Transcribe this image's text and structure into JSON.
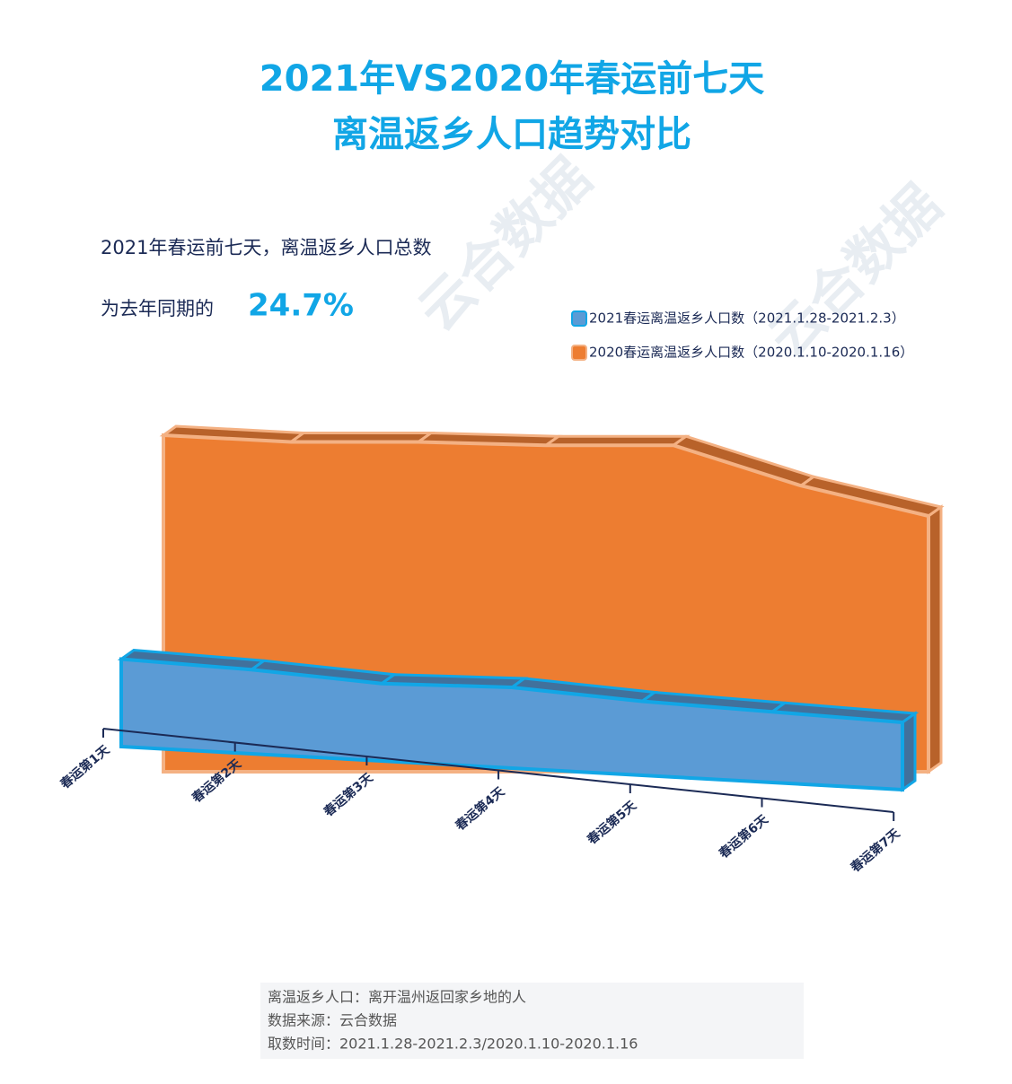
{
  "watermark": "云合数据",
  "chart_data": {
    "type": "area3d",
    "title": [
      "2021年VS2020年春运前七天",
      "离温返乡人口趋势对比"
    ],
    "subtitle": [
      "2021年春运前七天，离温返乡人口总数",
      "为去年同期的"
    ],
    "highlight": "24.7%",
    "categories": [
      "春运第1天",
      "春运第2天",
      "春运第3天",
      "春运第4天",
      "春运第5天",
      "春运第6天",
      "春运第7天"
    ],
    "series": [
      {
        "name": "2021春运离温返乡人口数（2021.1.28-2021.2.3）",
        "color": "#5b9bd5",
        "values": [
          26,
          25,
          23,
          24,
          22,
          21,
          20
        ]
      },
      {
        "name": "2020春运离温返乡人口数（2020.1.10-2020.1.16）",
        "color": "#ed7d31",
        "values": [
          100,
          98,
          98,
          97,
          97,
          85,
          76
        ]
      }
    ],
    "notes": [
      "离温返乡人口：离开温州返回家乡地的人",
      "数据来源：云合数据",
      "取数时间：2021.1.28-2021.2.3/2020.1.10-2020.1.16"
    ]
  }
}
